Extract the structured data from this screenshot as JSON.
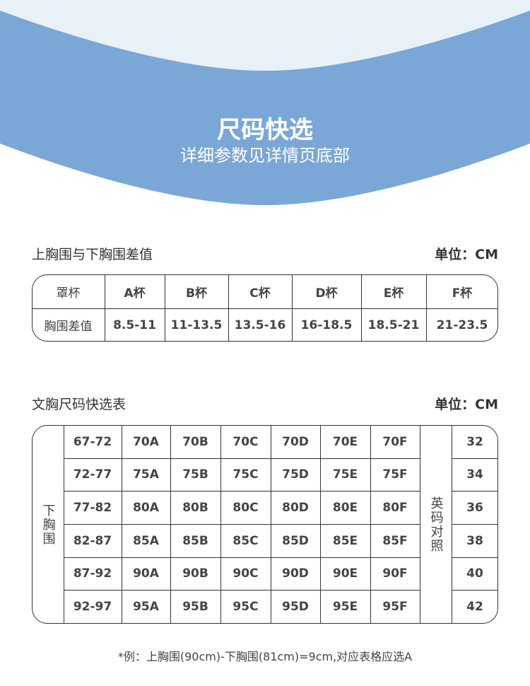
{
  "header": {
    "title": "尺码快选",
    "subtitle": "详细参数见详情页底部",
    "colors": {
      "blue": "#7ba7d6",
      "light": "#e8f1f7"
    }
  },
  "cup_table": {
    "title": "上胸围与下胸围差值",
    "unit": "单位：CM",
    "header": [
      "罩杯",
      "A杯",
      "B杯",
      "C杯",
      "D杯",
      "E杯",
      "F杯"
    ],
    "row": [
      "胸围差值",
      "8.5-11",
      "11-13.5",
      "13.5-16",
      "16-18.5",
      "18.5-21",
      "21-23.5"
    ]
  },
  "size_table": {
    "title": "文胸尺码快选表",
    "unit": "单位：CM",
    "row_label": "下胸围",
    "uk_label": "英码对照",
    "rows": [
      {
        "band": "67-72",
        "sizes": [
          "70A",
          "70B",
          "70C",
          "70D",
          "70E",
          "70F"
        ],
        "uk": "32"
      },
      {
        "band": "72-77",
        "sizes": [
          "75A",
          "75B",
          "75C",
          "75D",
          "75E",
          "75F"
        ],
        "uk": "34"
      },
      {
        "band": "77-82",
        "sizes": [
          "80A",
          "80B",
          "80C",
          "80D",
          "80E",
          "80F"
        ],
        "uk": "36"
      },
      {
        "band": "82-87",
        "sizes": [
          "85A",
          "85B",
          "85C",
          "85D",
          "85E",
          "85F"
        ],
        "uk": "38"
      },
      {
        "band": "87-92",
        "sizes": [
          "90A",
          "90B",
          "90C",
          "90D",
          "90E",
          "90F"
        ],
        "uk": "40"
      },
      {
        "band": "92-97",
        "sizes": [
          "95A",
          "95B",
          "95C",
          "95D",
          "95E",
          "95F"
        ],
        "uk": "42"
      }
    ]
  },
  "note": "*例：上胸围(90cm)-下胸围(81cm)=9cm,对应表格应选A"
}
